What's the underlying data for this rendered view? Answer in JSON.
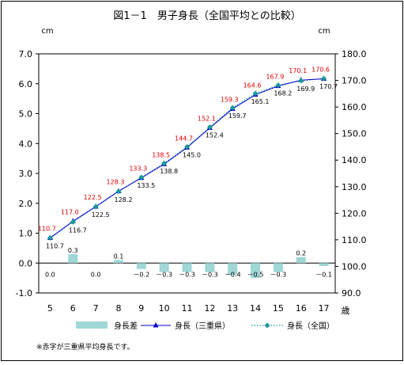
{
  "chart_data": {
    "type": "bar+line",
    "title": "図1－1　男子身長（全国平均との比較）",
    "left_unit": "cm",
    "right_unit": "cm",
    "x_unit": "歳",
    "left_axis": {
      "ylim": [
        -1.0,
        7.0
      ],
      "ticks": [
        "-1.0",
        "0.0",
        "1.0",
        "2.0",
        "3.0",
        "4.0",
        "5.0",
        "6.0",
        "7.0"
      ]
    },
    "right_axis": {
      "ylim": [
        90.0,
        180.0
      ],
      "ticks": [
        "90.0",
        "100.0",
        "110.0",
        "120.0",
        "130.0",
        "140.0",
        "150.0",
        "160.0",
        "170.0",
        "180.0"
      ]
    },
    "categories": [
      "5",
      "6",
      "7",
      "8",
      "9",
      "10",
      "11",
      "12",
      "13",
      "14",
      "15",
      "16",
      "17"
    ],
    "series": [
      {
        "name": "身長差",
        "kind": "bar",
        "axis": "left",
        "values": [
          0.0,
          0.3,
          0.0,
          0.1,
          -0.2,
          -0.3,
          -0.3,
          -0.3,
          -0.4,
          -0.5,
          -0.3,
          0.2,
          -0.1
        ],
        "labels": [
          "0.0",
          "0.3",
          "0.0",
          "0.1",
          "－0.2",
          "－0.3",
          "－0.3",
          "－0.3",
          "－0.4",
          "－0.5",
          "－0.3",
          "0.2",
          "－0.1"
        ],
        "color": "#9fd6d6"
      },
      {
        "name": "身長（三重県）",
        "kind": "line",
        "axis": "right",
        "values": [
          110.7,
          117.0,
          122.5,
          128.3,
          133.3,
          138.5,
          144.7,
          152.1,
          159.3,
          164.6,
          167.9,
          170.1,
          170.6
        ],
        "labels": [
          "110.7",
          "117.0",
          "122.5",
          "128.3",
          "133.3",
          "138.5",
          "144.7",
          "152.1",
          "159.3",
          "164.6",
          "167.9",
          "170.1",
          "170.6"
        ],
        "label_color": "#e00000",
        "color": "#0000cc"
      },
      {
        "name": "身長（全国）",
        "kind": "line",
        "axis": "right",
        "values": [
          110.7,
          116.7,
          122.5,
          128.2,
          133.5,
          138.8,
          145.0,
          152.4,
          159.7,
          165.1,
          168.2,
          169.9,
          170.7
        ],
        "labels": [
          "110.7",
          "116.7",
          "122.5",
          "128.2",
          "133.5",
          "138.8",
          "145.0",
          "152.4",
          "159.7",
          "165.1",
          "168.2",
          "169.9",
          "170.7"
        ],
        "label_color": "#000000",
        "color": "#1a9a9a"
      }
    ],
    "grid": false,
    "legend_position": "bottom",
    "footnote": "※赤字が三重県平均身長です。"
  }
}
